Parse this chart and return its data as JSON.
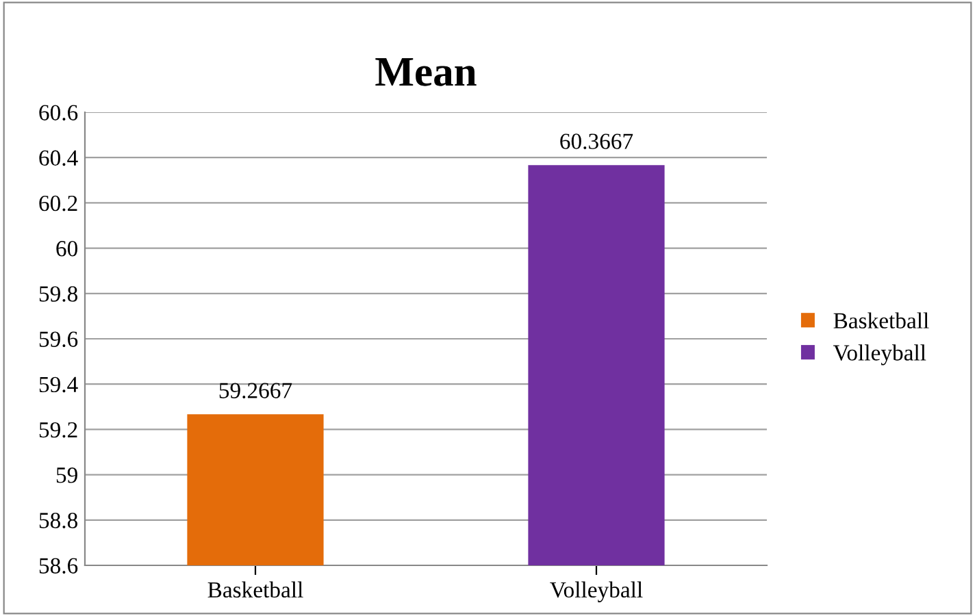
{
  "chart_data": {
    "type": "bar",
    "title": "Mean",
    "categories": [
      "Basketball",
      "Volleyball"
    ],
    "series": [
      {
        "name": "Basketball",
        "color": "#e46c0a",
        "values": [
          59.2667,
          null
        ]
      },
      {
        "name": "Volleyball",
        "color": "#7030a0",
        "values": [
          null,
          60.3667
        ]
      }
    ],
    "ylim": [
      58.6,
      60.6
    ],
    "yticks": [
      58.6,
      58.8,
      59,
      59.2,
      59.4,
      59.6,
      59.8,
      60,
      60.2,
      60.4,
      60.6
    ],
    "grid": "y",
    "legend": "right",
    "data_labels": true
  }
}
